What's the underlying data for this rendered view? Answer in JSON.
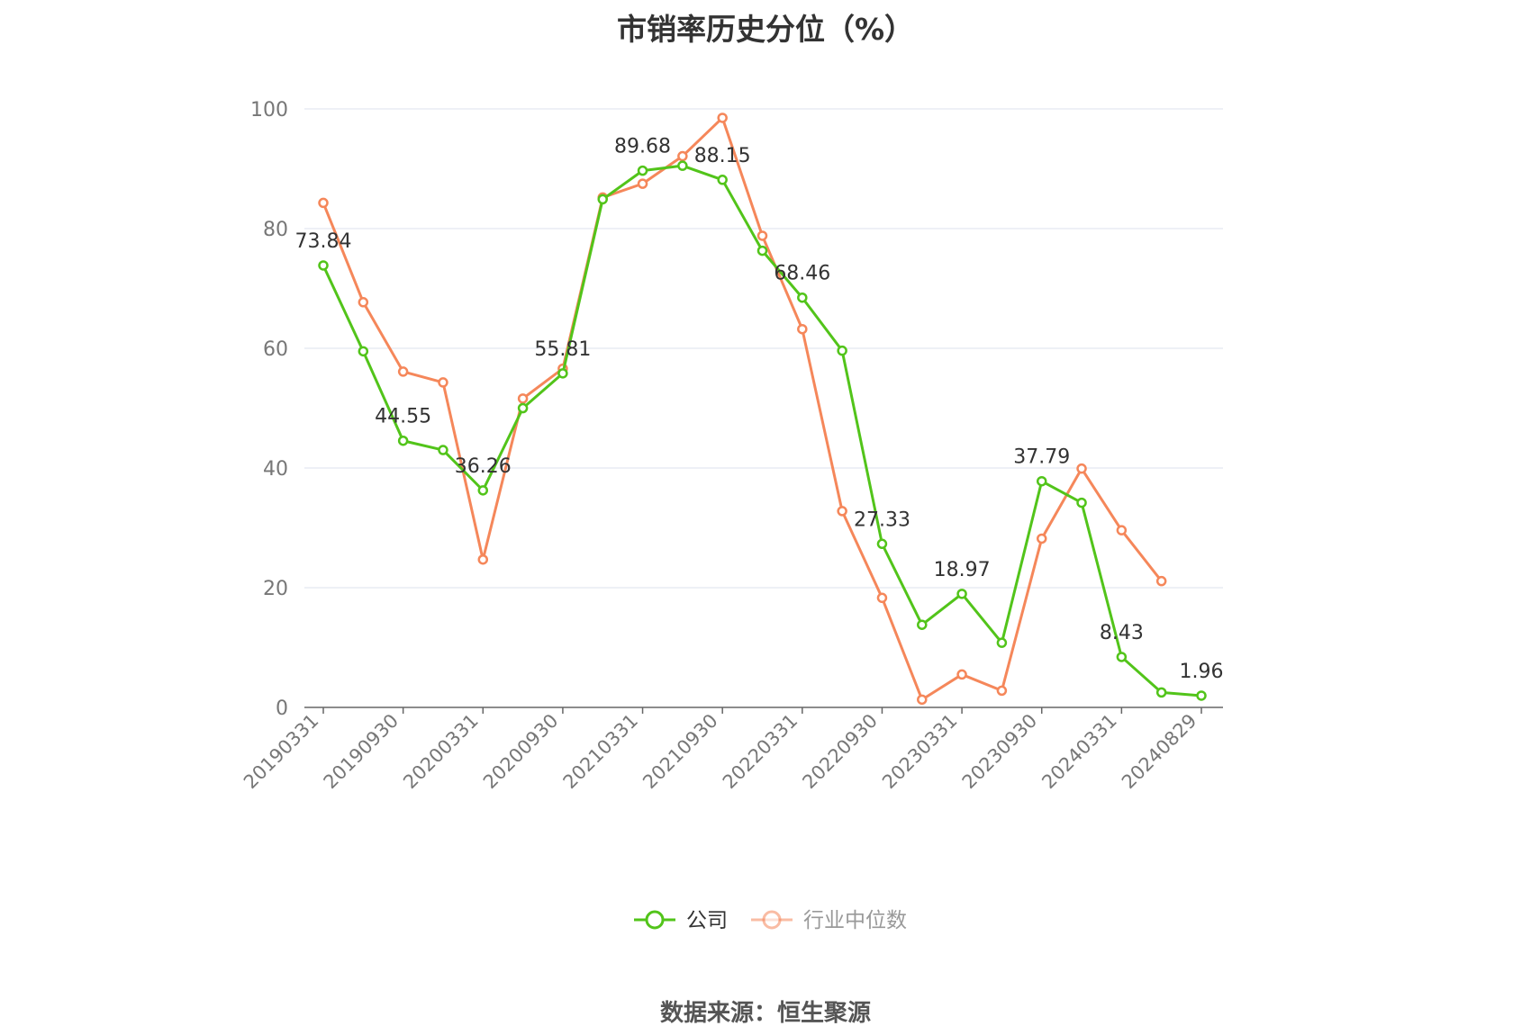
{
  "title": "市销率历史分位（%）",
  "source": "数据来源：恒生聚源",
  "colors": {
    "company": "#52c41a",
    "industry": "#f5875a",
    "grid": "#dde0ee",
    "axis": "#666666",
    "text": "#333333"
  },
  "chart_data": {
    "type": "line",
    "ylim": [
      0,
      100
    ],
    "yticks": [
      0,
      20,
      40,
      60,
      80,
      100
    ],
    "x": [
      "20190331",
      "20190630",
      "20190930",
      "20191231",
      "20200331",
      "20200630",
      "20200930",
      "20201231",
      "20210331",
      "20210630",
      "20210930",
      "20211231",
      "20220331",
      "20220630",
      "20220930",
      "20221231",
      "20230331",
      "20230630",
      "20230930",
      "20231231",
      "20240331",
      "20240630",
      "20240829"
    ],
    "xtick_labels": [
      "20190331",
      "20190930",
      "20200331",
      "20200930",
      "20210331",
      "20210930",
      "20220331",
      "20220930",
      "20230331",
      "20230930",
      "20240331",
      "20240829"
    ],
    "series": [
      {
        "name": "公司",
        "key": "company",
        "values": [
          73.84,
          59.5,
          44.55,
          43.0,
          36.26,
          50.0,
          55.81,
          84.9,
          89.68,
          90.5,
          88.15,
          76.3,
          68.46,
          59.6,
          27.33,
          13.8,
          18.97,
          10.8,
          37.79,
          34.2,
          8.43,
          2.5,
          1.96
        ]
      },
      {
        "name": "行业中位数",
        "key": "industry",
        "values": [
          84.3,
          67.7,
          56.1,
          54.3,
          24.7,
          51.6,
          56.6,
          85.2,
          87.5,
          92.1,
          98.5,
          78.8,
          63.2,
          32.8,
          18.3,
          1.3,
          5.5,
          2.8,
          28.2,
          39.9,
          29.6,
          21.1,
          null
        ]
      }
    ],
    "data_labels": [
      {
        "index": 0,
        "text": "73.84"
      },
      {
        "index": 2,
        "text": "44.55"
      },
      {
        "index": 4,
        "text": "36.26"
      },
      {
        "index": 6,
        "text": "55.81"
      },
      {
        "index": 8,
        "text": "89.68"
      },
      {
        "index": 10,
        "text": "88.15"
      },
      {
        "index": 12,
        "text": "68.46"
      },
      {
        "index": 14,
        "text": "27.33"
      },
      {
        "index": 16,
        "text": "18.97"
      },
      {
        "index": 18,
        "text": "37.79"
      },
      {
        "index": 20,
        "text": "8.43"
      },
      {
        "index": 22,
        "text": "1.96"
      }
    ],
    "legend": {
      "position": "bottom-center",
      "items": [
        "公司",
        "行业中位数"
      ]
    }
  }
}
